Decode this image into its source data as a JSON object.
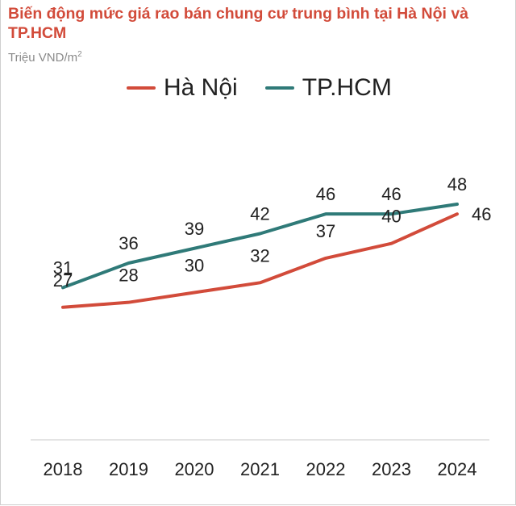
{
  "title": "Biến động mức giá rao bán chung cư trung bình tại Hà Nội và TP.HCM",
  "unit_line": {
    "text": "Triệu VND/m",
    "sup": "2"
  },
  "colors": {
    "hanoi": "#d24b3a",
    "hcm": "#2f7a78",
    "axis": "#c8c8c8"
  },
  "chart_data": {
    "type": "line",
    "title": "Biến động mức giá rao bán chung cư trung bình tại Hà Nội và TP.HCM",
    "ylabel": "Triệu VND/m2",
    "xlabel": "",
    "categories": [
      "2018",
      "2019",
      "2020",
      "2021",
      "2022",
      "2023",
      "2024"
    ],
    "series": [
      {
        "name": "Hà Nội",
        "color": "#d24b3a",
        "values": [
          27,
          28,
          30,
          32,
          37,
          40,
          46
        ]
      },
      {
        "name": "TP.HCM",
        "color": "#2f7a78",
        "values": [
          31,
          36,
          39,
          42,
          46,
          46,
          48
        ]
      }
    ],
    "ylim": [
      0,
      60
    ],
    "legend": "top",
    "grid": false
  }
}
